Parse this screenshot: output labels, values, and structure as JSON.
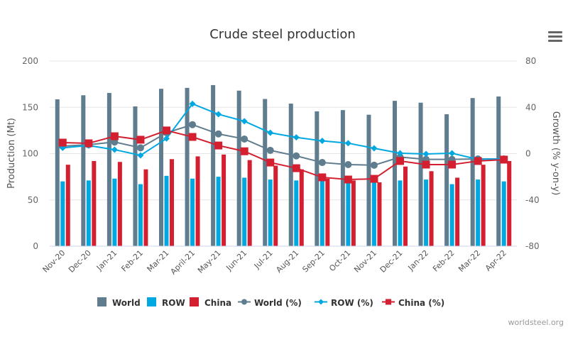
{
  "credit": "worldsteel.org",
  "menu_icon": "hamburger-menu-icon",
  "chart_data": {
    "type": "bar",
    "title": "Crude steel production",
    "xlabel": "",
    "ylabel": "Production (Mt)",
    "y2label": "Growth (% y-on-y)",
    "ylim": [
      0,
      200
    ],
    "y_ticks": [
      0,
      50,
      100,
      150,
      200
    ],
    "y2lim": [
      -80,
      80
    ],
    "y2_ticks": [
      -80,
      -40,
      0,
      40,
      80
    ],
    "grid": true,
    "legend_position": "bottom",
    "categories": [
      "Nov-20",
      "Dec-20",
      "Jan-21",
      "Feb-21",
      "Mar-21",
      "April-21",
      "May-21",
      "Jun-21",
      "Jul-21",
      "Aug-21",
      "Sep-21",
      "Oct-21",
      "Nov-21",
      "Dec-21",
      "Jan-22",
      "Feb-22",
      "Mar-22",
      "Apr-22"
    ],
    "series": [
      {
        "name": "World",
        "kind": "bar",
        "axis": "left",
        "color": "#5f7d8f",
        "values": [
          158.6,
          163,
          165.5,
          151,
          170,
          171,
          174,
          168,
          159,
          154,
          145.6,
          147,
          142,
          157,
          155,
          142.5,
          160,
          161.7
        ]
      },
      {
        "name": "ROW",
        "kind": "bar",
        "axis": "left",
        "color": "#00a8e1",
        "values": [
          70,
          71,
          73,
          67,
          76,
          73,
          75,
          74,
          72,
          71,
          72,
          71,
          70,
          71,
          72,
          67,
          72,
          70
        ]
      },
      {
        "name": "China",
        "kind": "bar",
        "axis": "left",
        "color": "#d31f2f",
        "values": [
          88,
          92,
          91,
          83,
          94,
          97,
          99,
          93,
          87,
          83,
          73,
          71,
          69,
          86,
          81,
          74,
          88,
          92
        ]
      },
      {
        "name": "World (%)",
        "kind": "line",
        "axis": "right",
        "marker": "circle",
        "color": "#5f7d8f",
        "values": [
          6.4,
          7.7,
          10,
          5,
          18,
          25,
          17,
          12.6,
          2.8,
          -2,
          -7.7,
          -9.5,
          -10,
          -3,
          -5,
          -5,
          -4.6,
          -4.6
        ]
      },
      {
        "name": "ROW (%)",
        "kind": "line",
        "axis": "right",
        "marker": "diamond",
        "color": "#00a8e1",
        "values": [
          5,
          7,
          3.4,
          -1.5,
          13,
          43,
          34,
          28,
          18,
          14,
          11,
          9,
          4.6,
          0.3,
          -0.3,
          0.3,
          -5,
          -4.6
        ]
      },
      {
        "name": "China (%)",
        "kind": "line",
        "axis": "right",
        "marker": "square",
        "color": "#d31f2f",
        "values": [
          9.5,
          8.9,
          15,
          12,
          20,
          14.4,
          7,
          2,
          -7.7,
          -12.6,
          -20.5,
          -22.4,
          -21.8,
          -6.4,
          -9.5,
          -9.5,
          -6.4,
          -5.2
        ]
      }
    ]
  }
}
